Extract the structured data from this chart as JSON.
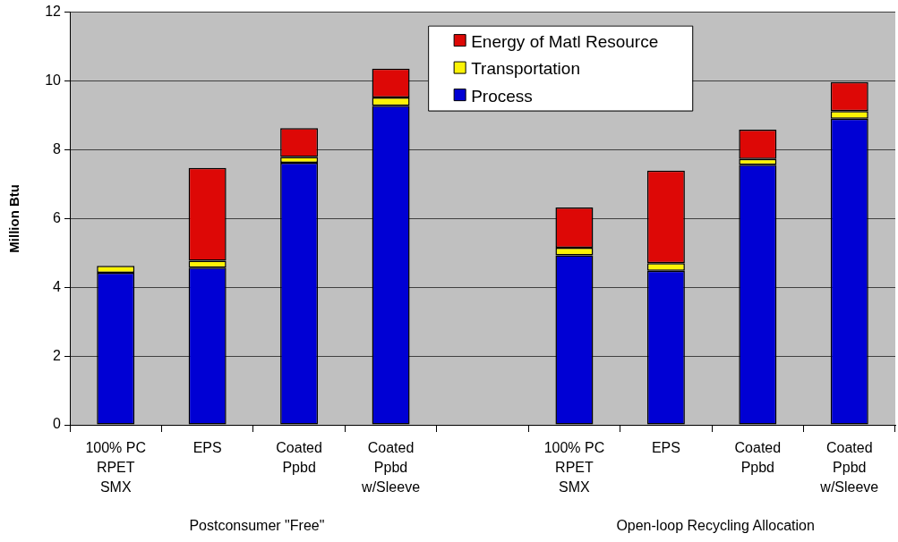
{
  "chart_data": {
    "type": "bar",
    "stacked": true,
    "ylabel": "Million Btu",
    "categories": [
      "100% PC\nRPET\nSMX",
      "EPS",
      "Coated\nPpbd",
      "Coated\nPpbd\nw/Sleeve",
      null,
      "100% PC\nRPET\nSMX",
      "EPS",
      "Coated\nPpbd",
      "Coated\nPpbd\nw/Sleeve"
    ],
    "series": [
      {
        "name": "Process",
        "color": "#0000d4",
        "values": [
          4.42,
          4.57,
          7.62,
          9.28,
          null,
          4.93,
          4.48,
          7.56,
          8.9
        ]
      },
      {
        "name": "Transportation",
        "color": "#fcf305",
        "values": [
          0.2,
          0.2,
          0.17,
          0.24,
          null,
          0.22,
          0.22,
          0.17,
          0.22
        ]
      },
      {
        "name": "Energy of Matl Resource",
        "color": "#dd0806",
        "values": [
          null,
          2.7,
          0.84,
          0.84,
          null,
          1.17,
          2.69,
          0.85,
          0.85
        ]
      }
    ],
    "ylim": [
      0,
      12
    ],
    "yticks": [
      0,
      2,
      4,
      6,
      8,
      10,
      12
    ],
    "grid": "y",
    "legend": "top",
    "annotations": [
      "Postconsumer \"Free\"",
      "Open-loop Recycling Allocation"
    ]
  }
}
